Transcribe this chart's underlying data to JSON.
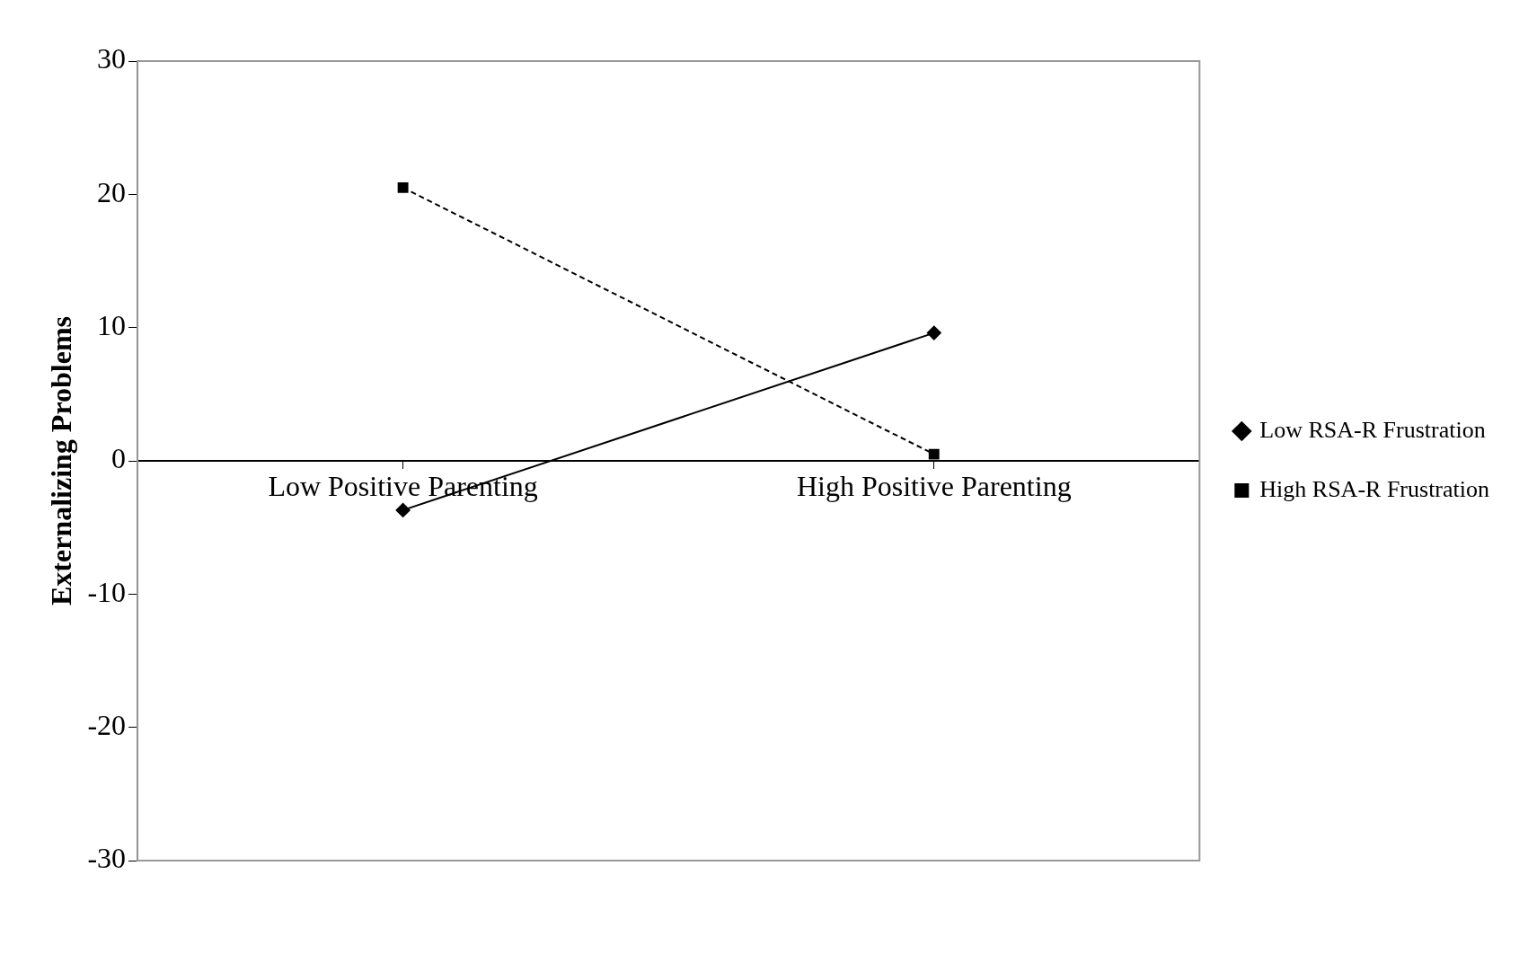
{
  "chart_data": {
    "type": "line",
    "ylabel": "Externalizing Problems",
    "categories": [
      "Low Positive Parenting",
      "High Positive Parenting"
    ],
    "series": [
      {
        "name": "Low RSA-R Frustration",
        "color": "#000000",
        "values": [
          -3.7,
          9.6
        ],
        "marker": "diamond",
        "line_style": "solid"
      },
      {
        "name": "High RSA-R Frustration",
        "color": "#000000",
        "values": [
          20.5,
          0.5
        ],
        "marker": "square",
        "line_style": "dashed"
      }
    ],
    "ylim": [
      -30,
      30
    ],
    "yticks": [
      -30,
      -20,
      -10,
      0,
      10,
      20,
      30
    ],
    "grid": false,
    "legend": "right"
  }
}
